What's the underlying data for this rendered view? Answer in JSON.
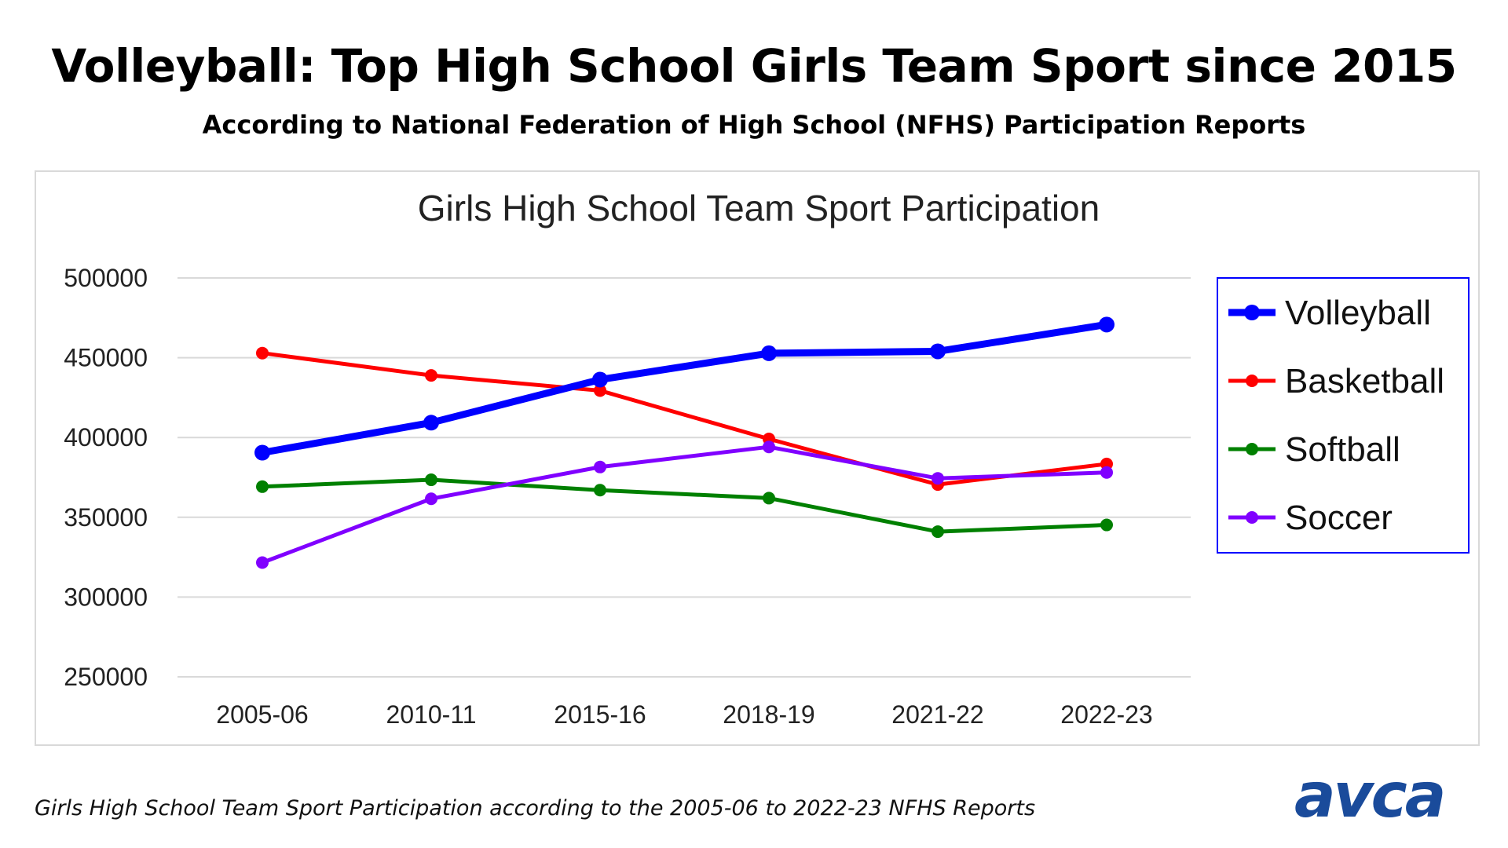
{
  "header": {
    "headline": "Volleyball: Top High School Girls Team Sport since 2015",
    "subhead": "According to National Federation of High School (NFHS) Participation Reports"
  },
  "footer": {
    "caption": "Girls High School Team Sport Participation according to the 2005-06 to 2022-23 NFHS Reports",
    "logo_text": "avca"
  },
  "colors": {
    "volleyball": "#0000ff",
    "basketball": "#ff0000",
    "softball": "#008000",
    "soccer": "#8000ff",
    "logo": "#1a4b9b",
    "grid": "#d9d9d9"
  },
  "chart_data": {
    "type": "line",
    "title": "Girls High School Team Sport Participation",
    "xlabel": "",
    "ylabel": "",
    "categories": [
      "2005-06",
      "2010-11",
      "2015-16",
      "2018-19",
      "2021-22",
      "2022-23"
    ],
    "ylim": [
      250000,
      500000
    ],
    "yticks": [
      250000,
      300000,
      350000,
      400000,
      450000,
      500000
    ],
    "grid": true,
    "legend_position": "right",
    "series": [
      {
        "name": "Volleyball",
        "values": [
          390500,
          409300,
          436300,
          452800,
          454000,
          470800
        ]
      },
      {
        "name": "Basketball",
        "values": [
          452900,
          438900,
          429400,
          399100,
          370500,
          383400
        ]
      },
      {
        "name": "Softball",
        "values": [
          369200,
          373500,
          367000,
          362000,
          341000,
          345200
        ]
      },
      {
        "name": "Soccer",
        "values": [
          321600,
          361600,
          381500,
          394100,
          374400,
          378100
        ]
      }
    ]
  }
}
